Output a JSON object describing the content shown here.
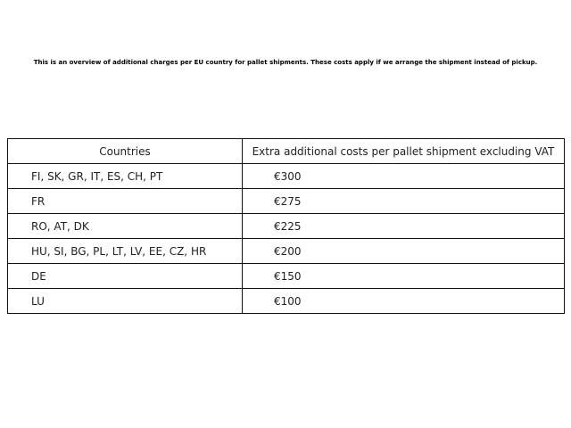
{
  "intro": "This is an overview of additional charges per EU country for pallet shipments. These costs apply if we arrange the shipment instead of pickup.",
  "table": {
    "headers": [
      "Countries",
      "Extra additional costs per pallet shipment excluding VAT"
    ],
    "rows": [
      [
        "FI, SK, GR, IT, ES, CH, PT",
        "€300"
      ],
      [
        "FR",
        "€275"
      ],
      [
        "RO, AT, DK",
        "€225"
      ],
      [
        "HU, SI, BG, PL, LT, LV, EE, CZ, HR",
        "€200"
      ],
      [
        "DE",
        "€150"
      ],
      [
        "LU",
        "€100"
      ]
    ]
  }
}
